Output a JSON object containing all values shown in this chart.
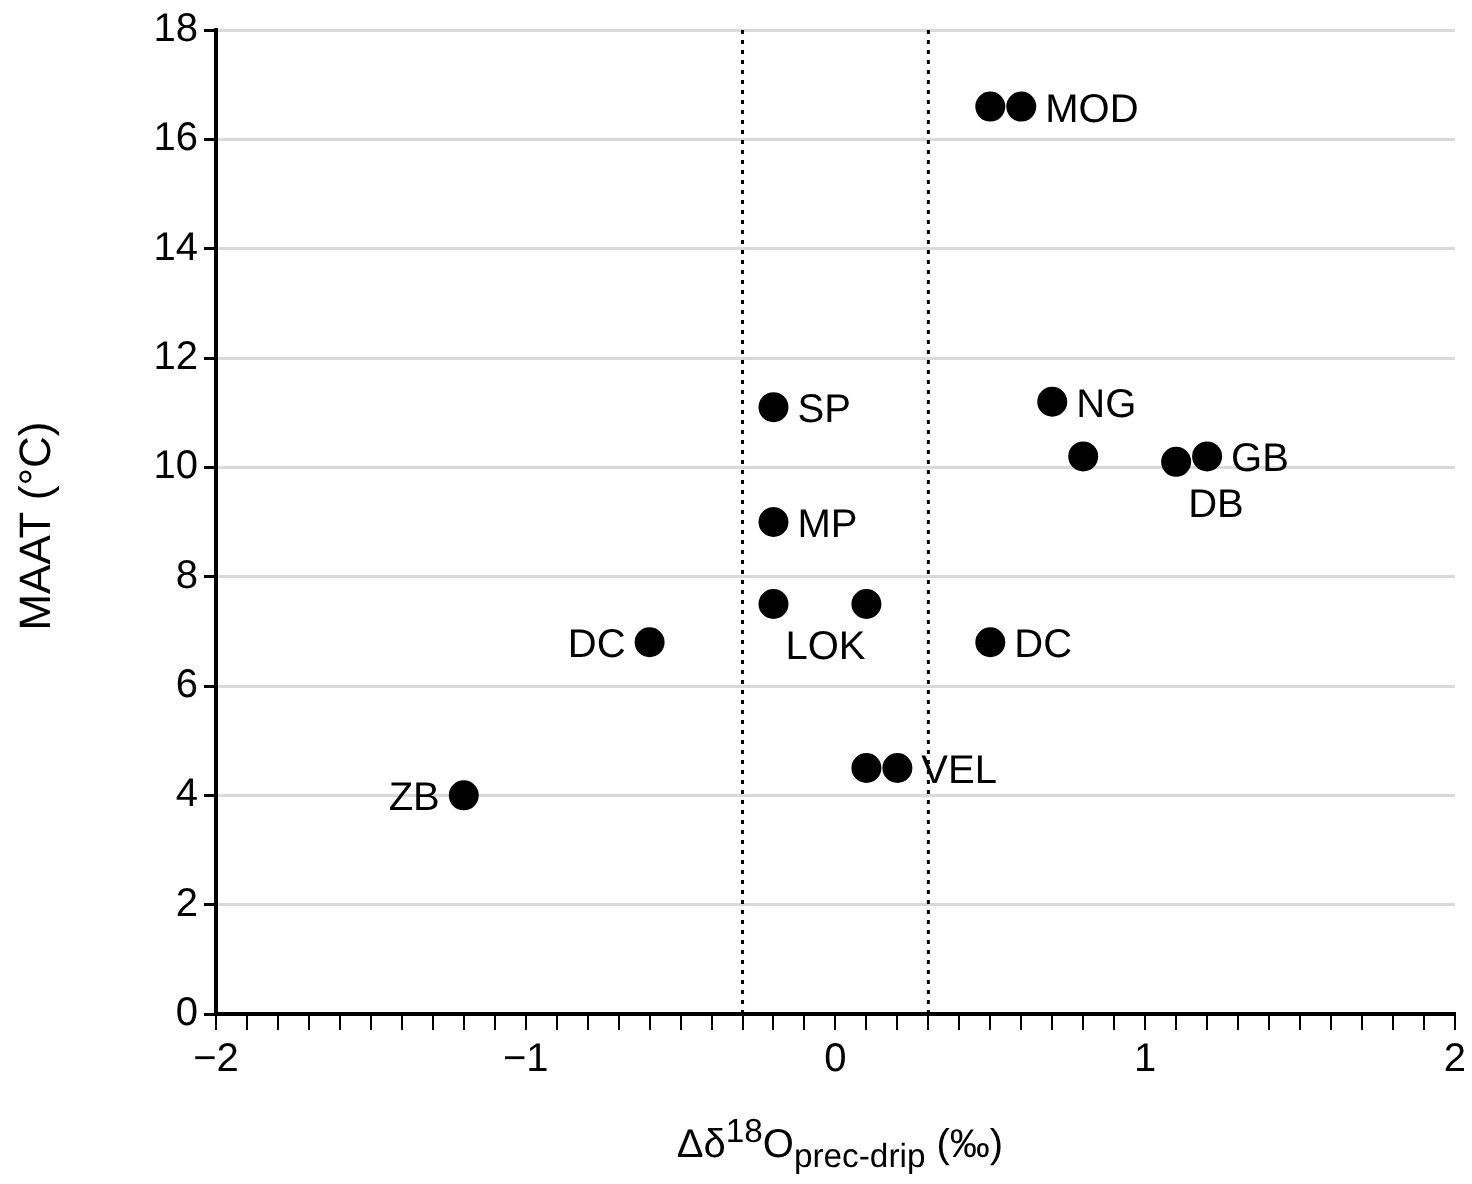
{
  "chart_data": {
    "type": "scatter",
    "xlabel": "Δδ$^{18}$O$_{prec-drip}$ (‰)",
    "ylabel": "MAAT  (°C)",
    "x": [
      0.5,
      0.6,
      -0.2,
      0.7,
      0.8,
      1.1,
      1.2,
      -0.2,
      -0.2,
      0.1,
      -0.6,
      0.5,
      0.1,
      0.2,
      -1.2
    ],
    "values": [
      16.6,
      16.6,
      11.1,
      11.2,
      10.2,
      10.1,
      10.2,
      9.0,
      7.5,
      7.5,
      6.8,
      6.8,
      4.5,
      4.5,
      4.0
    ],
    "color": "#000000",
    "marker": "circle",
    "xlim": [
      -2,
      2
    ],
    "xticks": [
      {
        "value": -2,
        "label": "−2"
      },
      {
        "value": -1.9,
        "label": null
      },
      {
        "value": -1.8,
        "label": null
      },
      {
        "value": -1.7,
        "label": null
      },
      {
        "value": -1.6,
        "label": null
      },
      {
        "value": -1.5,
        "label": null
      },
      {
        "value": -1.4,
        "label": null
      },
      {
        "value": -1.3,
        "label": null
      },
      {
        "value": -1.2,
        "label": null
      },
      {
        "value": -1.1,
        "label": null
      },
      {
        "value": -1,
        "label": "−1"
      },
      {
        "value": -0.9,
        "label": null
      },
      {
        "value": -0.8,
        "label": null
      },
      {
        "value": -0.7,
        "label": null
      },
      {
        "value": -0.6,
        "label": null
      },
      {
        "value": -0.5,
        "label": null
      },
      {
        "value": -0.4,
        "label": null
      },
      {
        "value": -0.3,
        "label": null
      },
      {
        "value": -0.2,
        "label": null
      },
      {
        "value": -0.1,
        "label": null
      },
      {
        "value": 0,
        "label": "0"
      },
      {
        "value": 0.1,
        "label": null
      },
      {
        "value": 0.2,
        "label": null
      },
      {
        "value": 0.3,
        "label": null
      },
      {
        "value": 0.4,
        "label": null
      },
      {
        "value": 0.5,
        "label": null
      },
      {
        "value": 0.6,
        "label": null
      },
      {
        "value": 0.7,
        "label": null
      },
      {
        "value": 0.8,
        "label": null
      },
      {
        "value": 0.9,
        "label": null
      },
      {
        "value": 1,
        "label": "1"
      },
      {
        "value": 1.1,
        "label": null
      },
      {
        "value": 1.2,
        "label": null
      },
      {
        "value": 1.3,
        "label": null
      },
      {
        "value": 1.4,
        "label": null
      },
      {
        "value": 1.5,
        "label": null
      },
      {
        "value": 1.6,
        "label": null
      },
      {
        "value": 1.7,
        "label": null
      },
      {
        "value": 1.8,
        "label": null
      },
      {
        "value": 1.9,
        "label": null
      },
      {
        "value": 2,
        "label": "2"
      }
    ],
    "ylim": [
      0,
      18
    ],
    "yticks": [
      0,
      2,
      4,
      6,
      8,
      10,
      12,
      14,
      16,
      18
    ],
    "grid": "y",
    "legend": false,
    "ref_lines": [
      {
        "axis": "x",
        "value": -0.3,
        "line_style": "dotted",
        "color": "#000000"
      },
      {
        "axis": "x",
        "value": 0.3,
        "line_style": "dotted",
        "color": "#000000"
      }
    ],
    "annotations": [
      {
        "text": "MOD",
        "x": 0.6,
        "y": 16.6
      },
      {
        "text": "SP",
        "x": -0.2,
        "y": 11.1
      },
      {
        "text": "NG",
        "x": 0.7,
        "y": 11.2
      },
      {
        "text": "GB",
        "x": 1.2,
        "y": 10.2
      },
      {
        "text": "DB",
        "x": 1.1,
        "y": 10.1
      },
      {
        "text": "MP",
        "x": -0.2,
        "y": 9.0
      },
      {
        "text": "LOK",
        "x": -0.2,
        "y": 7.5
      },
      {
        "text": "DC",
        "x": -0.6,
        "y": 6.8
      },
      {
        "text": "DC",
        "x": 0.5,
        "y": 6.8
      },
      {
        "text": "VEL",
        "x": 0.2,
        "y": 4.5
      },
      {
        "text": "ZB",
        "x": -1.2,
        "y": 4.0
      }
    ]
  }
}
